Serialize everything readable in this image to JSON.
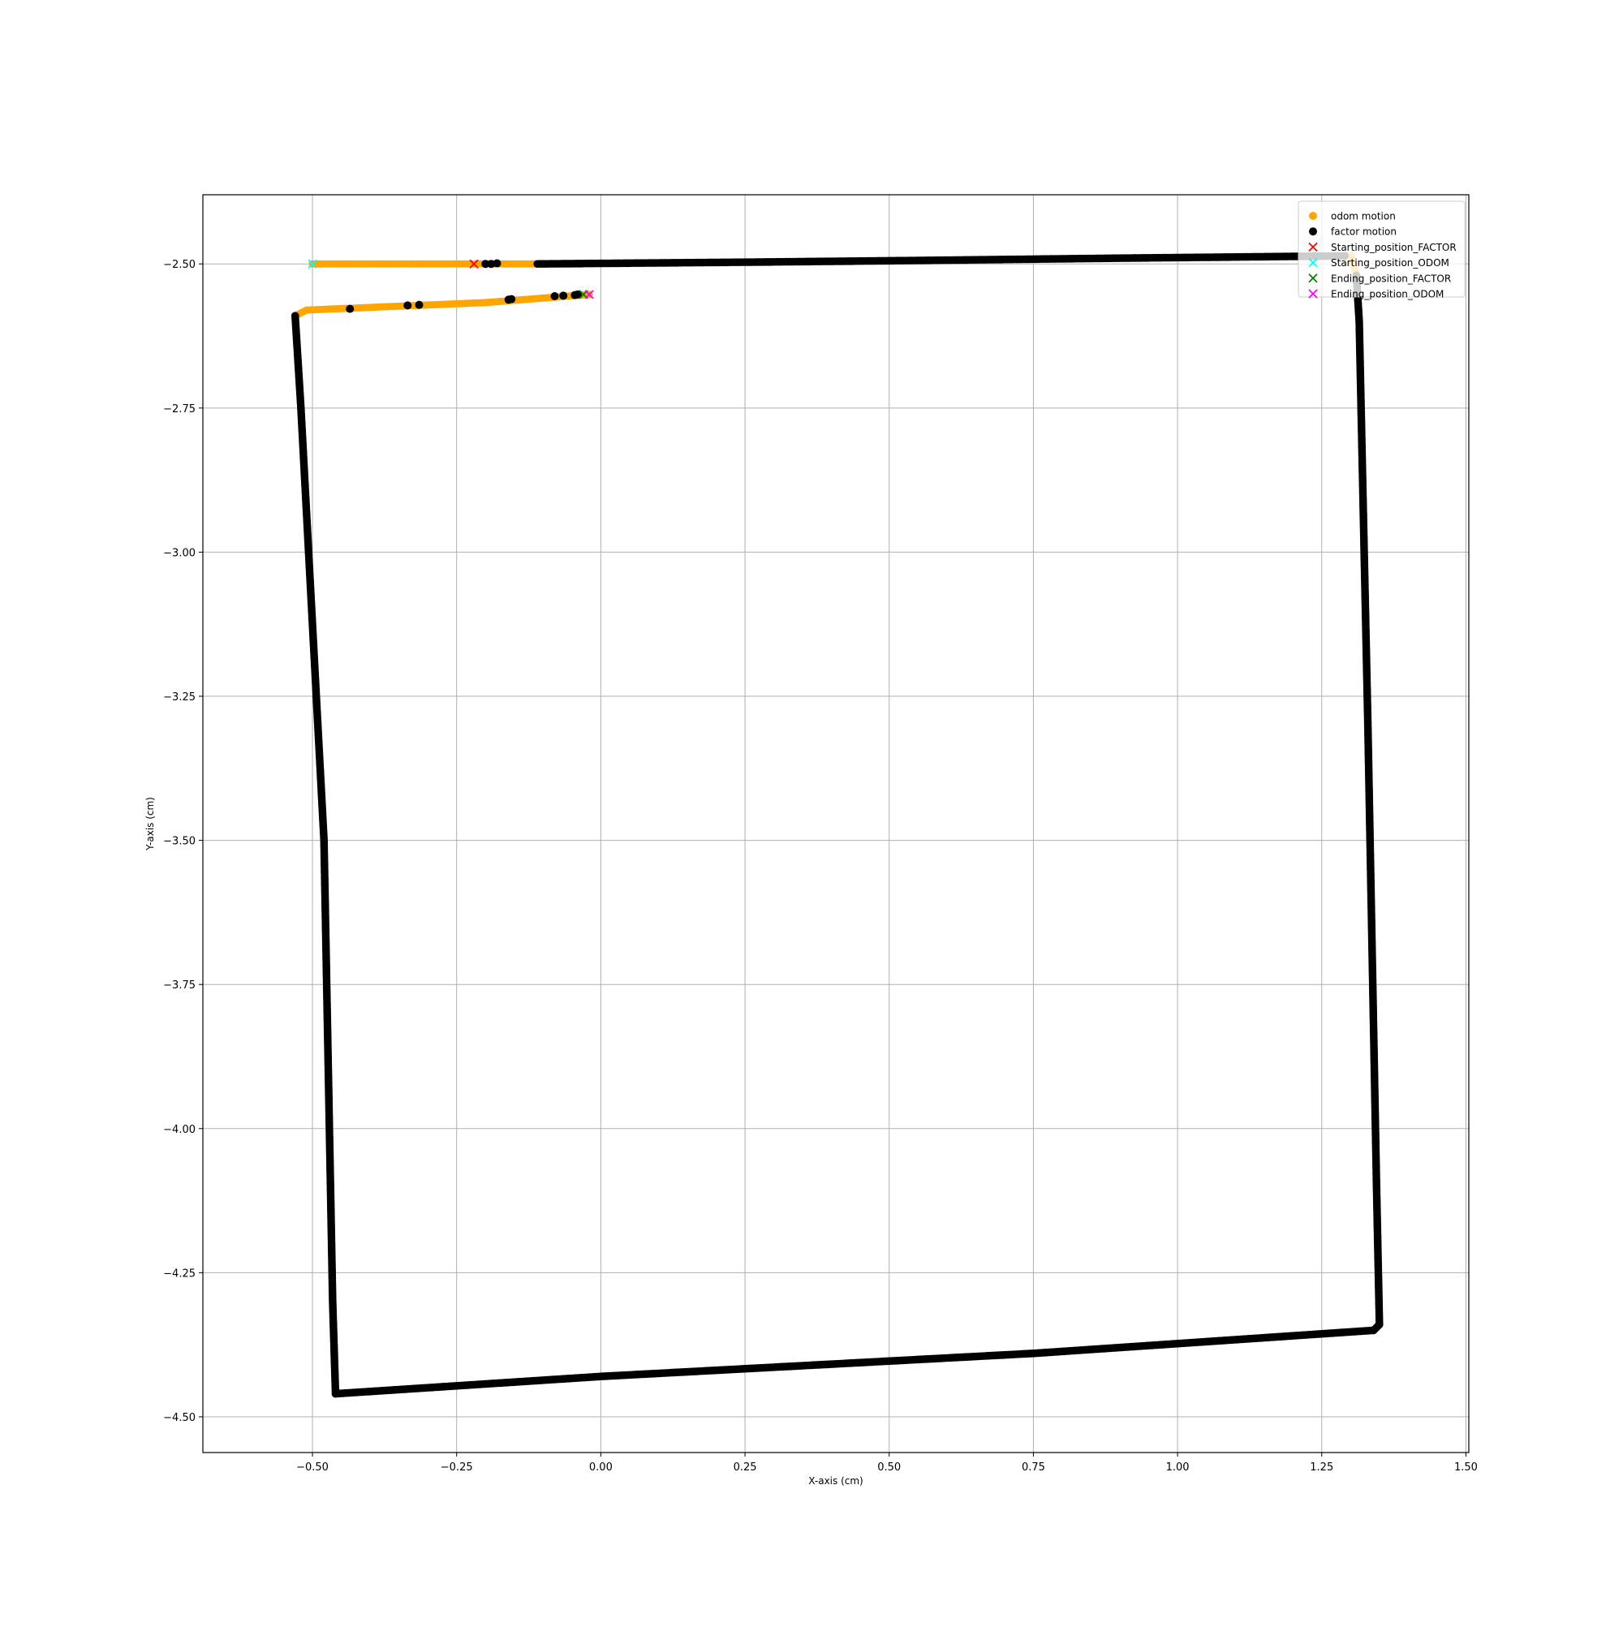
{
  "chart_data": {
    "type": "scatter",
    "title": "",
    "xlabel": "X-axis (cm)",
    "ylabel": "Y-axis (cm)",
    "xlim": [
      -0.69,
      1.505
    ],
    "ylim": [
      -4.562,
      -2.38
    ],
    "xticks": [
      -0.5,
      -0.25,
      0.0,
      0.25,
      0.5,
      0.75,
      1.0,
      1.25,
      1.5
    ],
    "xtick_labels": [
      "−0.50",
      "−0.25",
      "0.00",
      "0.25",
      "0.50",
      "0.75",
      "1.00",
      "1.25",
      "1.50"
    ],
    "yticks": [
      -2.5,
      -2.75,
      -3.0,
      -3.25,
      -3.5,
      -3.75,
      -4.0,
      -4.25,
      -4.5
    ],
    "ytick_labels": [
      "−2.50",
      "−2.75",
      "−3.00",
      "−3.25",
      "−3.50",
      "−3.75",
      "−4.00",
      "−4.25",
      "−4.50"
    ],
    "grid": true,
    "legend_position": "top-right",
    "series": [
      {
        "name": "odom motion",
        "kind": "dots",
        "color": "#ffa500",
        "path": [
          [
            -0.5,
            -2.5
          ],
          [
            -0.11,
            -2.5
          ],
          [
            0.25,
            -2.497
          ],
          [
            0.55,
            -2.494
          ],
          [
            0.9,
            -2.49
          ],
          [
            1.1,
            -2.488
          ],
          [
            1.3,
            -2.486
          ],
          [
            1.31,
            -2.52
          ],
          [
            1.315,
            -2.6
          ],
          [
            1.33,
            -3.3
          ],
          [
            1.345,
            -4.1
          ],
          [
            1.35,
            -4.34
          ],
          [
            1.34,
            -4.35
          ],
          [
            0.75,
            -4.39
          ],
          [
            0.0,
            -4.43
          ],
          [
            -0.46,
            -4.46
          ],
          [
            -0.465,
            -4.3
          ],
          [
            -0.48,
            -3.5
          ],
          [
            -0.52,
            -2.75
          ],
          [
            -0.53,
            -2.59
          ],
          [
            -0.51,
            -2.58
          ],
          [
            -0.2,
            -2.567
          ],
          [
            -0.02,
            -2.553
          ]
        ],
        "step": 0.004
      },
      {
        "name": "factor motion",
        "kind": "dots",
        "color": "#000000",
        "segments": [
          {
            "path": [
              [
                -0.11,
                -2.5
              ],
              [
                0.25,
                -2.497
              ],
              [
                0.55,
                -2.494
              ],
              [
                0.9,
                -2.49
              ],
              [
                1.1,
                -2.488
              ],
              [
                1.29,
                -2.486
              ]
            ],
            "step": 0.004
          },
          {
            "path": [
              [
                1.31,
                -2.52
              ],
              [
                1.315,
                -2.6
              ],
              [
                1.33,
                -3.3
              ],
              [
                1.345,
                -4.1
              ],
              [
                1.35,
                -4.34
              ],
              [
                1.34,
                -4.35
              ]
            ],
            "step": 0.004
          },
          {
            "path": [
              [
                1.34,
                -4.35
              ],
              [
                0.75,
                -4.39
              ],
              [
                0.0,
                -4.43
              ],
              [
                -0.46,
                -4.46
              ]
            ],
            "step": 0.0035
          },
          {
            "path": [
              [
                -0.46,
                -4.46
              ],
              [
                -0.465,
                -4.3
              ],
              [
                -0.48,
                -3.5
              ],
              [
                -0.52,
                -2.75
              ],
              [
                -0.53,
                -2.59
              ]
            ],
            "step": 0.004
          }
        ],
        "points": [
          [
            -0.19,
            -2.5
          ],
          [
            -0.2,
            -2.5
          ],
          [
            -0.18,
            -2.499
          ],
          [
            -0.435,
            -2.578
          ],
          [
            -0.335,
            -2.572
          ],
          [
            -0.315,
            -2.571
          ],
          [
            -0.155,
            -2.561
          ],
          [
            -0.16,
            -2.562
          ],
          [
            -0.08,
            -2.556
          ],
          [
            -0.065,
            -2.555
          ],
          [
            -0.045,
            -2.554
          ],
          [
            -0.04,
            -2.553
          ]
        ]
      },
      {
        "name": "Starting_position_FACTOR",
        "kind": "x",
        "color": "#ff0000",
        "points": [
          [
            -0.22,
            -2.5
          ]
        ]
      },
      {
        "name": "Starting_position_ODOM",
        "kind": "x",
        "color": "#00ffff",
        "points": [
          [
            -0.5,
            -2.5
          ]
        ]
      },
      {
        "name": "Ending_position_FACTOR",
        "kind": "x",
        "color": "#008000",
        "points": [
          [
            -0.03,
            -2.553
          ]
        ]
      },
      {
        "name": "Ending_position_ODOM",
        "kind": "x",
        "color": "#ff00ff",
        "points": [
          [
            -0.02,
            -2.553
          ]
        ]
      }
    ]
  }
}
